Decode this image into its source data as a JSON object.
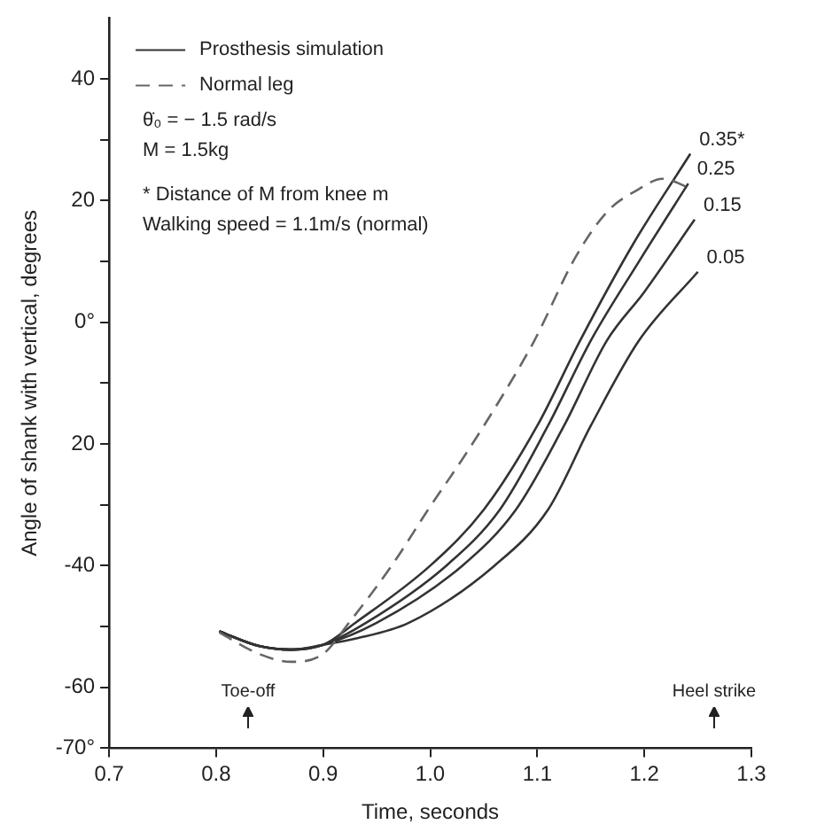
{
  "chart_data": {
    "type": "line",
    "xlabel": "Time, seconds",
    "ylabel": "Angle of shank with vertical, degrees",
    "xlim": [
      0.7,
      1.3
    ],
    "xticks": [
      0.7,
      0.8,
      0.9,
      {
        "value": 1,
        "label": "1.0"
      },
      1.1,
      1.2,
      1.3
    ],
    "ylim": [
      -70,
      50
    ],
    "yticks": [
      {
        "value": -70,
        "label": "-70°"
      },
      -60,
      {
        "value": -50,
        "label": null
      },
      -40,
      {
        "value": -30,
        "label": null
      },
      {
        "value": -20,
        "label": "20"
      },
      {
        "value": -10,
        "label": null
      },
      {
        "value": 0,
        "label": "0°"
      },
      {
        "value": 10,
        "label": null
      },
      20,
      {
        "value": 30,
        "label": null
      },
      40
    ],
    "grid": false,
    "legend": "top left",
    "marker": "none",
    "annotations": [
      "Prosthesis simulation",
      "θ̇₀ = − 1.5 rad/s",
      "M = 1.5kg",
      "* Distance of M from knee m",
      "Walking speed = 1.1m/s (normal)",
      "Toe-off",
      "Heel strike"
    ],
    "series": [
      {
        "name": "Normal leg",
        "color": "#666666",
        "line_style": "dashed",
        "x": [
          0.803,
          0.84,
          0.87,
          0.9,
          0.924,
          0.964,
          0.998,
          1.033,
          1.067,
          1.097,
          1.136,
          1.166,
          1.195,
          1.217,
          1.243
        ],
        "values": [
          -51,
          -54.5,
          -55.8,
          -54.5,
          -49.4,
          -40,
          -30.8,
          -21.7,
          -12.2,
          -3.1,
          10.8,
          18.3,
          21.9,
          23.6,
          22
        ]
      },
      {
        "name": "0.35*",
        "color": "#333333",
        "line_style": "solid",
        "x": [
          0.803,
          0.84,
          0.87,
          0.9,
          0.93,
          1.0,
          1.05,
          1.1,
          1.14,
          1.19,
          1.243
        ],
        "values": [
          -50.8,
          -53.2,
          -53.8,
          -53,
          -49.4,
          -40,
          -30.8,
          -17,
          -3,
          13,
          27.7
        ]
      },
      {
        "name": "0.25",
        "color": "#333333",
        "line_style": "solid",
        "x": [
          0.803,
          0.84,
          0.87,
          0.9,
          0.94,
          1.015,
          1.065,
          1.11,
          1.15,
          1.195,
          1.241
        ],
        "values": [
          -50.8,
          -53.2,
          -53.8,
          -53,
          -49.4,
          -40,
          -30.8,
          -17,
          -3,
          10,
          22.8
        ]
      },
      {
        "name": "0.15",
        "color": "#333333",
        "line_style": "solid",
        "x": [
          0.803,
          0.84,
          0.87,
          0.9,
          0.95,
          1.03,
          1.08,
          1.125,
          1.165,
          1.2,
          1.247
        ],
        "values": [
          -50.8,
          -53.2,
          -53.8,
          -53,
          -49.4,
          -40,
          -30.8,
          -17,
          -3,
          5,
          16.9
        ]
      },
      {
        "name": "0.05",
        "color": "#333333",
        "line_style": "solid",
        "x": [
          0.803,
          0.84,
          0.87,
          0.9,
          0.93,
          0.98,
          1.06,
          1.11,
          1.15,
          1.195,
          1.25
        ],
        "values": [
          -50.8,
          -53.2,
          -53.8,
          -53,
          -52,
          -49.4,
          -40,
          -30.8,
          -17,
          -3,
          8.3
        ]
      }
    ]
  }
}
